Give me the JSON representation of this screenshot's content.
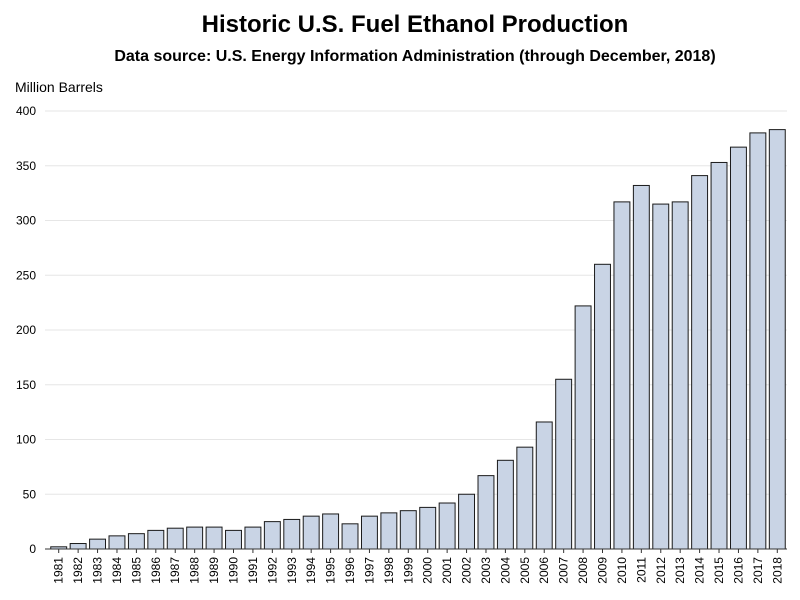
{
  "chart_data": {
    "type": "bar",
    "title": "Historic U.S. Fuel Ethanol Production",
    "subtitle": "Data source: U.S. Energy Information Administration (through December, 2018)",
    "xlabel": "",
    "ylabel": "Million Barrels",
    "ylim": [
      0,
      400
    ],
    "yticks": [
      0,
      50,
      100,
      150,
      200,
      250,
      300,
      350,
      400
    ],
    "grid": true,
    "bar_color": "#c9d4e5",
    "categories": [
      "1981",
      "1982",
      "1983",
      "1984",
      "1985",
      "1986",
      "1987",
      "1988",
      "1989",
      "1990",
      "1991",
      "1992",
      "1993",
      "1994",
      "1995",
      "1996",
      "1997",
      "1998",
      "1999",
      "2000",
      "2001",
      "2002",
      "2003",
      "2004",
      "2005",
      "2006",
      "2007",
      "2008",
      "2009",
      "2010",
      "2011",
      "2012",
      "2013",
      "2014",
      "2015",
      "2016",
      "2017",
      "2018"
    ],
    "values": [
      2,
      5,
      9,
      12,
      14,
      17,
      19,
      20,
      20,
      17,
      20,
      25,
      27,
      30,
      32,
      23,
      30,
      33,
      35,
      38,
      42,
      50,
      67,
      81,
      93,
      116,
      155,
      222,
      260,
      317,
      332,
      315,
      317,
      341,
      353,
      367,
      380,
      383
    ]
  }
}
